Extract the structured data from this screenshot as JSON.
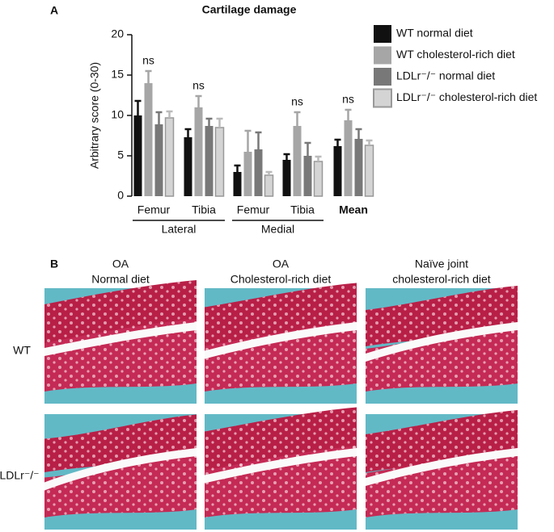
{
  "chart_data": {
    "type": "bar",
    "title": "Cartilage damage",
    "ylabel": "Arbitrary score (0-30)",
    "categories": [
      "Femur",
      "Tibia",
      "Femur",
      "Tibia",
      "Mean"
    ],
    "category_groups": [
      "Lateral",
      "Lateral",
      "Medial",
      "Medial",
      null
    ],
    "annotations": [
      "ns",
      "ns",
      null,
      "ns",
      "ns"
    ],
    "ylim": [
      0,
      20
    ],
    "yticks": [
      0,
      5,
      10,
      15,
      20
    ],
    "series": [
      {
        "name": "WT normal diet",
        "color": "#111111",
        "values": [
          10.0,
          7.3,
          3.0,
          4.5,
          6.2
        ],
        "errors": [
          1.8,
          1.0,
          0.8,
          0.7,
          0.8
        ]
      },
      {
        "name": "WT cholesterol-rich diet",
        "color": "#a6a6a6",
        "values": [
          14.0,
          11.0,
          5.5,
          8.7,
          9.4
        ],
        "errors": [
          1.5,
          1.4,
          2.6,
          1.7,
          1.3
        ]
      },
      {
        "name": "LDLr⁻/⁻ normal diet",
        "color": "#787878",
        "values": [
          8.9,
          8.7,
          5.8,
          5.0,
          7.1
        ],
        "errors": [
          1.5,
          0.9,
          2.1,
          1.6,
          1.2
        ]
      },
      {
        "name": "LDLr⁻/⁻ cholesterol-rich diet",
        "color": "#d4d4d4",
        "values": [
          9.7,
          8.5,
          2.6,
          4.3,
          6.3
        ],
        "errors": [
          0.8,
          1.1,
          0.4,
          0.6,
          0.6
        ]
      }
    ]
  },
  "panel_labels": [
    "A",
    "B"
  ],
  "histology": {
    "columns": [
      [
        "OA",
        "Normal diet"
      ],
      [
        "OA",
        "Cholesterol-rich diet"
      ],
      [
        "Naïve joint",
        "cholesterol-rich diet"
      ]
    ],
    "rows": [
      "WT",
      "LDLr⁻/⁻"
    ]
  }
}
